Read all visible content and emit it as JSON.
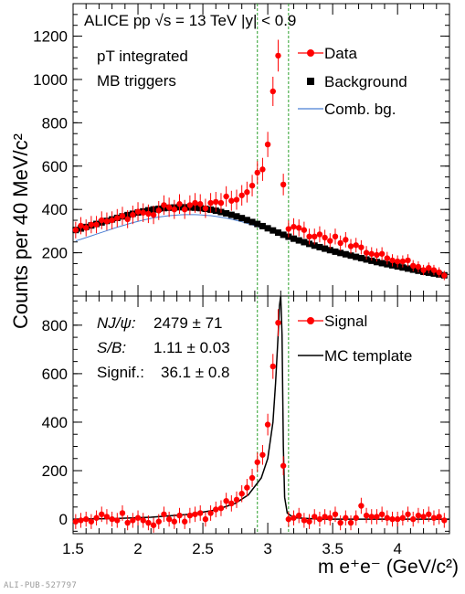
{
  "figure": {
    "y_title": "Counts per 40 MeV/c²",
    "x_title": "m e⁺e⁻ (GeV/c²)",
    "pub_id": "ALI-PUB-527797"
  },
  "colors": {
    "data": "#ff0000",
    "background": "#000000",
    "comb_bg": "#4a7fd4",
    "mc_template": "#000000",
    "window_lines": "#2ca02c"
  },
  "chart_data": [
    {
      "type": "scatter",
      "title": "",
      "xlim": [
        1.5,
        4.4
      ],
      "ylim": [
        0,
        1350
      ],
      "yticks": [
        200,
        400,
        600,
        800,
        1000,
        1200
      ],
      "ytick_labels": [
        "200",
        "400",
        "600",
        "800",
        "1000",
        "1200"
      ],
      "log_scale": false,
      "grid": false,
      "legend_position": "top-right",
      "annotations": {
        "line1": "ALICE pp √s = 13 TeV |y| < 0.9",
        "line2": "pT integrated",
        "line3": "MB triggers"
      },
      "legend": [
        "Data",
        "Background",
        "Comb. bg."
      ],
      "signal_window": [
        2.92,
        3.16
      ],
      "x": [
        1.52,
        1.56,
        1.6,
        1.64,
        1.68,
        1.72,
        1.76,
        1.8,
        1.84,
        1.88,
        1.92,
        1.96,
        2.0,
        2.04,
        2.08,
        2.12,
        2.16,
        2.2,
        2.24,
        2.28,
        2.32,
        2.36,
        2.4,
        2.44,
        2.48,
        2.52,
        2.56,
        2.6,
        2.64,
        2.68,
        2.72,
        2.76,
        2.8,
        2.84,
        2.88,
        2.92,
        2.96,
        3.0,
        3.04,
        3.08,
        3.12,
        3.16,
        3.2,
        3.24,
        3.28,
        3.32,
        3.36,
        3.4,
        3.44,
        3.48,
        3.52,
        3.56,
        3.6,
        3.64,
        3.68,
        3.72,
        3.76,
        3.8,
        3.84,
        3.88,
        3.92,
        3.96,
        4.0,
        4.04,
        4.08,
        4.12,
        4.16,
        4.2,
        4.24,
        4.28,
        4.32,
        4.36
      ],
      "series": [
        {
          "name": "Data",
          "values": [
            305,
            325,
            315,
            330,
            330,
            350,
            345,
            350,
            360,
            370,
            355,
            375,
            390,
            385,
            380,
            375,
            395,
            420,
            410,
            400,
            425,
            400,
            420,
            430,
            425,
            405,
            430,
            435,
            430,
            460,
            440,
            445,
            465,
            480,
            510,
            570,
            585,
            700,
            945,
            1110,
            515,
            310,
            320,
            315,
            305,
            275,
            275,
            285,
            270,
            255,
            275,
            245,
            260,
            230,
            235,
            225,
            200,
            195,
            190,
            195,
            175,
            165,
            160,
            160,
            165,
            140,
            135,
            120,
            130,
            120,
            110,
            95
          ]
        },
        {
          "name": "Background",
          "values": [
            305,
            312,
            319,
            326,
            333,
            340,
            347,
            354,
            361,
            368,
            374,
            380,
            386,
            391,
            396,
            400,
            403,
            406,
            408,
            409,
            410,
            410,
            409,
            408,
            406,
            403,
            399,
            394,
            388,
            382,
            375,
            368,
            360,
            351,
            342,
            333,
            323,
            313,
            303,
            293,
            283,
            274,
            265,
            257,
            249,
            241,
            233,
            226,
            219,
            212,
            205,
            199,
            193,
            187,
            181,
            175,
            169,
            163,
            157,
            152,
            147,
            142,
            137,
            132,
            127,
            122,
            117,
            112,
            108,
            104,
            100,
            96
          ]
        },
        {
          "name": "Comb. bg.",
          "values": [
            255,
            262,
            270,
            278,
            286,
            294,
            302,
            310,
            318,
            325,
            332,
            339,
            345,
            351,
            356,
            361,
            365,
            368,
            371,
            373,
            375,
            376,
            376,
            376,
            375,
            373,
            371,
            368,
            364,
            360,
            355,
            349,
            343,
            336,
            329,
            321,
            313,
            305,
            296,
            287,
            278,
            270,
            262,
            254,
            246,
            239,
            232,
            225,
            218,
            211,
            204,
            198,
            192,
            186,
            180,
            174,
            168,
            162,
            157,
            151,
            146,
            141,
            136,
            131,
            126,
            121,
            116,
            112,
            108,
            104,
            100,
            96
          ]
        }
      ]
    },
    {
      "type": "scatter",
      "xlim": [
        1.5,
        4.4
      ],
      "ylim": [
        -60,
        920
      ],
      "yticks": [
        0,
        200,
        400,
        600,
        800
      ],
      "ytick_labels": [
        "0",
        "200",
        "400",
        "600",
        "800"
      ],
      "xticks": [
        1.5,
        2,
        2.5,
        3,
        3.5,
        4
      ],
      "xtick_labels": [
        "1.5",
        "2",
        "2.5",
        "3",
        "3.5",
        "4"
      ],
      "log_scale": false,
      "grid": false,
      "legend_position": "top-right",
      "legend": [
        "Signal",
        "MC template"
      ],
      "stats": {
        "n_label": "NJ/ψ:",
        "n_value": "2479 ± 71",
        "sb_label": "S/B:",
        "sb_value": "1.11 ± 0.03",
        "sig_label": "Signif.:",
        "sig_value": "36.1 ± 0.8"
      },
      "signal_window": [
        2.92,
        3.16
      ],
      "x": [
        1.52,
        1.56,
        1.6,
        1.64,
        1.68,
        1.72,
        1.76,
        1.8,
        1.84,
        1.88,
        1.92,
        1.96,
        2.0,
        2.04,
        2.08,
        2.12,
        2.16,
        2.2,
        2.24,
        2.28,
        2.32,
        2.36,
        2.4,
        2.44,
        2.48,
        2.52,
        2.56,
        2.6,
        2.64,
        2.68,
        2.72,
        2.76,
        2.8,
        2.84,
        2.88,
        2.92,
        2.96,
        3.0,
        3.04,
        3.08,
        3.12,
        3.16,
        3.2,
        3.24,
        3.28,
        3.32,
        3.36,
        3.4,
        3.44,
        3.48,
        3.52,
        3.56,
        3.6,
        3.64,
        3.68,
        3.72,
        3.76,
        3.8,
        3.84,
        3.88,
        3.92,
        3.96,
        4.0,
        4.04,
        4.08,
        4.12,
        4.16,
        4.2,
        4.24,
        4.28,
        4.32,
        4.36
      ],
      "series": [
        {
          "name": "Signal",
          "values": [
            -10,
            -5,
            0,
            -10,
            5,
            20,
            10,
            0,
            -5,
            25,
            -15,
            -5,
            5,
            -5,
            -15,
            -25,
            -10,
            20,
            0,
            -10,
            15,
            -10,
            15,
            20,
            25,
            0,
            25,
            40,
            45,
            75,
            65,
            80,
            105,
            130,
            170,
            235,
            265,
            390,
            630,
            810,
            220,
            0,
            5,
            15,
            -5,
            -10,
            10,
            0,
            10,
            5,
            20,
            -15,
            5,
            -15,
            5,
            55,
            15,
            10,
            10,
            20,
            5,
            0,
            0,
            5,
            20,
            0,
            15,
            10,
            20,
            5,
            10,
            -5
          ]
        },
        {
          "name": "MC template",
          "x": [
            1.5,
            1.8,
            2.1,
            2.4,
            2.6,
            2.75,
            2.85,
            2.95,
            3.0,
            3.04,
            3.06,
            3.08,
            3.09,
            3.1,
            3.11,
            3.12,
            3.13,
            3.15,
            3.2,
            3.4,
            4.4
          ],
          "values": [
            0,
            2,
            8,
            20,
            38,
            65,
            100,
            170,
            250,
            400,
            560,
            760,
            880,
            920,
            760,
            300,
            90,
            25,
            6,
            0,
            0
          ]
        }
      ]
    }
  ]
}
